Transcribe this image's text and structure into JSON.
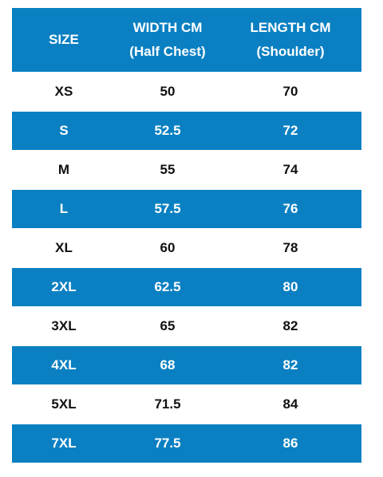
{
  "table": {
    "header": [
      [
        "SIZE"
      ],
      [
        "WIDTH CM",
        "(Half Chest)"
      ],
      [
        "LENGTH CM",
        "(Shoulder)"
      ]
    ],
    "rows": [
      [
        "XS",
        50,
        70
      ],
      [
        "S",
        52.5,
        72
      ],
      [
        "M",
        55,
        74
      ],
      [
        "L",
        57.5,
        76
      ],
      [
        "XL",
        60,
        78
      ],
      [
        "2XL",
        62.5,
        80
      ],
      [
        "3XL",
        65,
        82
      ],
      [
        "4XL",
        68,
        82
      ],
      [
        "5XL",
        71.5,
        84
      ],
      [
        "7XL",
        77.5,
        86
      ]
    ]
  }
}
